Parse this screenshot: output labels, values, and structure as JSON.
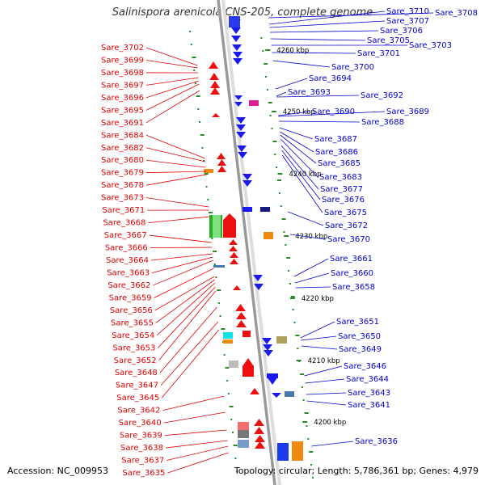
{
  "title": "Salinispora arenicola CNS-205, complete genome",
  "footer": {
    "accession": "Accession: NC_009953",
    "stats": "Topology: circular; Length: 5,786,361 bp; Genes: 4,979"
  },
  "colors": {
    "left_label": "#e00000",
    "right_label": "#0000cc",
    "backbone": "#999999",
    "tick": "#2a8a2a"
  },
  "kbp_marks": [
    "4260 kbp",
    "4250 kbp",
    "4240 kbp",
    "4230 kbp",
    "4220 kbp",
    "4210 kbp",
    "4200 kbp"
  ],
  "left_labels": [
    "Sare_3702",
    "Sare_3699",
    "Sare_3698",
    "Sare_3697",
    "Sare_3696",
    "Sare_3695",
    "Sare_3691",
    "Sare_3684",
    "Sare_3682",
    "Sare_3680",
    "Sare_3679",
    "Sare_3678",
    "Sare_3673",
    "Sare_3671",
    "Sare_3668",
    "Sare_3667",
    "Sare_3666",
    "Sare_3664",
    "Sare_3663",
    "Sare_3662",
    "Sare_3659",
    "Sare_3656",
    "Sare_3655",
    "Sare_3654",
    "Sare_3653",
    "Sare_3652",
    "Sare_3648",
    "Sare_3647",
    "Sare_3645",
    "Sare_3642",
    "Sare_3640",
    "Sare_3639",
    "Sare_3638",
    "Sare_3637",
    "Sare_3635"
  ],
  "right_labels": [
    "Sare_3710",
    "Sare_3708",
    "Sare_3707",
    "Sare_3706",
    "Sare_3705",
    "Sare_3703",
    "Sare_3701",
    "Sare_3700",
    "Sare_3694",
    "Sare_3693",
    "Sare_3692",
    "Sare_3690",
    "Sare_3689",
    "Sare_3688",
    "Sare_3687",
    "Sare_3686",
    "Sare_3685",
    "Sare_3683",
    "Sare_3677",
    "Sare_3676",
    "Sare_3675",
    "Sare_3672",
    "Sare_3670",
    "Sare_3661",
    "Sare_3660",
    "Sare_3658",
    "Sare_3651",
    "Sare_3650",
    "Sare_3649",
    "Sare_3646",
    "Sare_3644",
    "Sare_3643",
    "Sare_3641",
    "Sare_3636"
  ]
}
